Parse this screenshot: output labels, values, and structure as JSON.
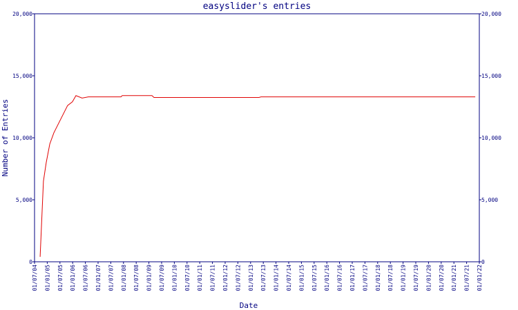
{
  "chart_data": {
    "type": "line",
    "title": "easyslider's entries",
    "x_label": "Date",
    "y_label": "Number of Entries",
    "x": [
      2004.72,
      2004.85,
      2004.96,
      2005.1,
      2005.26,
      2005.8,
      2005.99,
      2006.13,
      2006.37,
      2006.62,
      2007.9,
      2007.95,
      2009.12,
      2009.2,
      2013.33,
      2013.41,
      2021.84
    ],
    "series": [
      {
        "name": "easyslider",
        "color": "#e00000",
        "values": [
          400,
          6500,
          8000,
          9500,
          10400,
          12600,
          12900,
          13400,
          13200,
          13300,
          13300,
          13400,
          13400,
          13250,
          13250,
          13300,
          13300
        ]
      }
    ],
    "xlim": [
      2004.5,
      2022.0
    ],
    "ylim": [
      0,
      20000
    ],
    "yticks": [
      0,
      {
        "value": 5000,
        "label": "5,000"
      },
      {
        "value": 10000,
        "label": "10,000"
      },
      {
        "value": 15000,
        "label": "15,000"
      },
      {
        "value": 20000,
        "label": "20,000"
      }
    ],
    "xticks": [
      {
        "value": 2004.5,
        "label": "01/07/04"
      },
      {
        "value": 2005.0,
        "label": "01/01/05"
      },
      {
        "value": 2005.5,
        "label": "01/07/05"
      },
      {
        "value": 2006.0,
        "label": "01/01/06"
      },
      {
        "value": 2006.5,
        "label": "01/07/06"
      },
      {
        "value": 2007.0,
        "label": "01/01/07"
      },
      {
        "value": 2007.5,
        "label": "01/07/07"
      },
      {
        "value": 2008.0,
        "label": "01/01/08"
      },
      {
        "value": 2008.5,
        "label": "01/07/08"
      },
      {
        "value": 2009.0,
        "label": "01/01/09"
      },
      {
        "value": 2009.5,
        "label": "01/07/09"
      },
      {
        "value": 2010.0,
        "label": "01/01/10"
      },
      {
        "value": 2010.5,
        "label": "01/07/10"
      },
      {
        "value": 2011.0,
        "label": "01/01/11"
      },
      {
        "value": 2011.5,
        "label": "01/07/11"
      },
      {
        "value": 2012.0,
        "label": "01/01/12"
      },
      {
        "value": 2012.5,
        "label": "01/07/12"
      },
      {
        "value": 2013.0,
        "label": "01/01/13"
      },
      {
        "value": 2013.5,
        "label": "01/07/13"
      },
      {
        "value": 2014.0,
        "label": "01/01/14"
      },
      {
        "value": 2014.5,
        "label": "01/07/14"
      },
      {
        "value": 2015.0,
        "label": "01/01/15"
      },
      {
        "value": 2015.5,
        "label": "01/07/15"
      },
      {
        "value": 2016.0,
        "label": "01/01/16"
      },
      {
        "value": 2016.5,
        "label": "01/07/16"
      },
      {
        "value": 2017.0,
        "label": "01/01/17"
      },
      {
        "value": 2017.5,
        "label": "01/07/17"
      },
      {
        "value": 2018.0,
        "label": "01/01/18"
      },
      {
        "value": 2018.5,
        "label": "01/07/18"
      },
      {
        "value": 2019.0,
        "label": "01/01/19"
      },
      {
        "value": 2019.5,
        "label": "01/07/19"
      },
      {
        "value": 2020.0,
        "label": "01/01/20"
      },
      {
        "value": 2020.5,
        "label": "01/07/20"
      },
      {
        "value": 2021.0,
        "label": "01/01/21"
      },
      {
        "value": 2021.5,
        "label": "01/07/21"
      },
      {
        "value": 2022.0,
        "label": "01/01/22"
      }
    ]
  }
}
